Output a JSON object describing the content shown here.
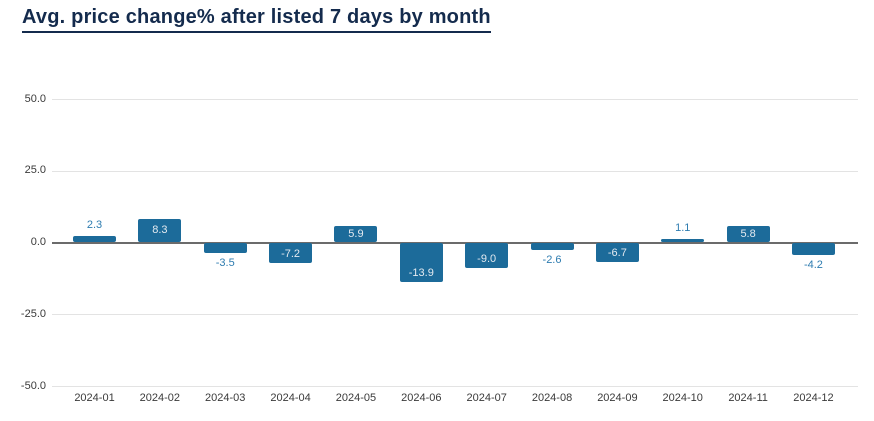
{
  "chart_data": {
    "type": "bar",
    "title": "Avg. price change% after listed 7 days by month",
    "categories": [
      "2024-01",
      "2024-02",
      "2024-03",
      "2024-04",
      "2024-05",
      "2024-06",
      "2024-07",
      "2024-08",
      "2024-09",
      "2024-10",
      "2024-11",
      "2024-12"
    ],
    "values": [
      2.3,
      8.3,
      -3.5,
      -7.2,
      5.9,
      -13.9,
      -9.0,
      -2.6,
      -6.7,
      1.1,
      5.8,
      -4.2
    ],
    "value_labels": [
      "2.3",
      "8.3",
      "-3.5",
      "-7.2",
      "5.9",
      "-13.9",
      "-9.0",
      "-2.6",
      "-6.7",
      "1.1",
      "5.8",
      "-4.2"
    ],
    "xlabel": "",
    "ylabel": "",
    "ylim": [
      -50,
      50
    ],
    "yticks": [
      50.0,
      25.0,
      0.0,
      -25.0,
      -50.0
    ],
    "ytick_labels": [
      "50.0",
      "25.0",
      "0.0",
      "-25.0",
      "-50.0"
    ],
    "grid": true,
    "legend": false,
    "label_inside_threshold": 5,
    "colors": {
      "bar": "#1c6b9a",
      "label_inside": "#e4eaf0",
      "label_outside": "#2e7cb0",
      "gridline": "#e3e3e3",
      "zero_line": "#6b6b6b",
      "axis_text": "#3a3a3a",
      "title": "#142b4d"
    }
  }
}
